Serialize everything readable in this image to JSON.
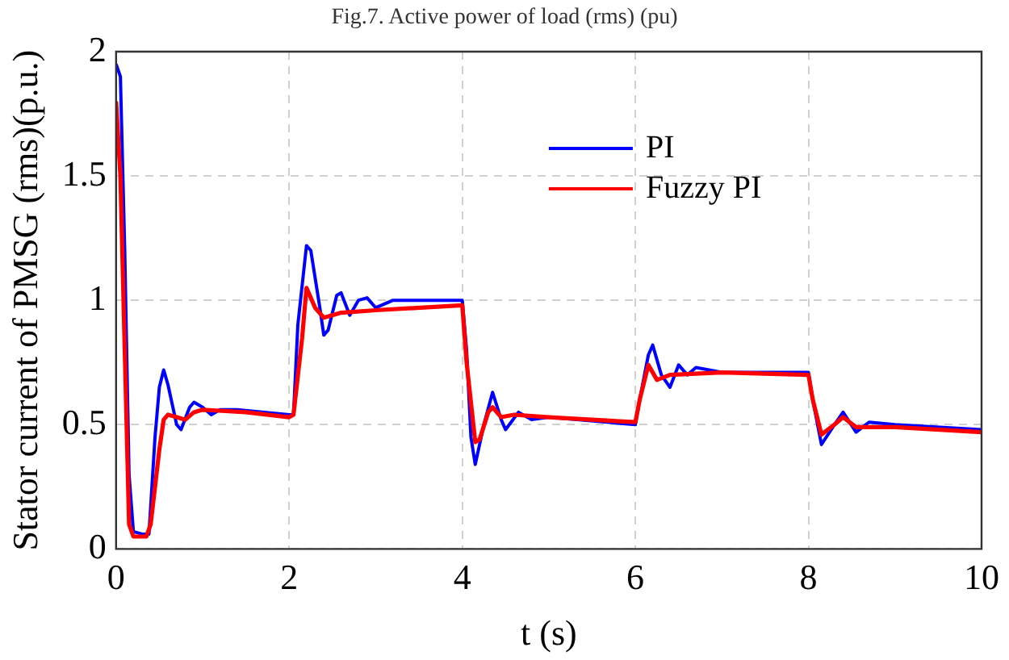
{
  "chart_data": {
    "type": "line",
    "annotations": [
      "Fig.7. Active power of load (rms) (pu)"
    ],
    "xlabel": "t (s)",
    "ylabel": "Stator current of PMSG (rms)(p.u.)",
    "xlim": [
      0,
      10
    ],
    "xticks": [
      0,
      2,
      4,
      6,
      8,
      10
    ],
    "ylim": [
      0,
      2
    ],
    "yticks": [
      0,
      0.5,
      1,
      1.5,
      2
    ],
    "grid": true,
    "legend": "top right",
    "marker": "none",
    "line_style": "solid",
    "series": [
      {
        "name": "PI",
        "color": "#0000ff",
        "x": [
          0,
          0.05,
          0.1,
          0.15,
          0.2,
          0.3,
          0.38,
          0.45,
          0.5,
          0.55,
          0.6,
          0.7,
          0.75,
          0.85,
          0.9,
          1.0,
          1.1,
          1.2,
          1.4,
          2.0,
          2.05,
          2.1,
          2.2,
          2.25,
          2.35,
          2.4,
          2.45,
          2.55,
          2.6,
          2.7,
          2.8,
          2.9,
          3.0,
          3.2,
          3.5,
          4.0,
          4.05,
          4.1,
          4.15,
          4.25,
          4.35,
          4.45,
          4.5,
          4.65,
          4.8,
          5.0,
          6.0,
          6.05,
          6.15,
          6.2,
          6.3,
          6.4,
          6.5,
          6.6,
          6.7,
          7.0,
          8.0,
          8.05,
          8.15,
          8.3,
          8.4,
          8.55,
          8.7,
          9.0,
          10
        ],
        "values": [
          1.95,
          1.9,
          1.2,
          0.3,
          0.07,
          0.06,
          0.06,
          0.45,
          0.65,
          0.72,
          0.66,
          0.5,
          0.48,
          0.57,
          0.59,
          0.57,
          0.54,
          0.56,
          0.56,
          0.54,
          0.54,
          0.9,
          1.22,
          1.2,
          0.98,
          0.86,
          0.88,
          1.02,
          1.03,
          0.94,
          1.0,
          1.01,
          0.97,
          1.0,
          1.0,
          1.0,
          0.8,
          0.45,
          0.34,
          0.5,
          0.63,
          0.52,
          0.48,
          0.55,
          0.52,
          0.53,
          0.5,
          0.6,
          0.78,
          0.82,
          0.7,
          0.65,
          0.74,
          0.7,
          0.73,
          0.71,
          0.71,
          0.6,
          0.42,
          0.5,
          0.55,
          0.47,
          0.51,
          0.5,
          0.48
        ]
      },
      {
        "name": "Fuzzy PI",
        "color": "#ff0000",
        "x": [
          0,
          0.05,
          0.1,
          0.15,
          0.2,
          0.35,
          0.4,
          0.5,
          0.55,
          0.6,
          0.7,
          0.8,
          0.9,
          1.0,
          1.5,
          2.0,
          2.05,
          2.15,
          2.2,
          2.3,
          2.4,
          2.6,
          3.0,
          4.0,
          4.05,
          4.15,
          4.2,
          4.3,
          4.35,
          4.45,
          4.6,
          5.0,
          6.0,
          6.05,
          6.15,
          6.25,
          6.4,
          7.0,
          8.0,
          8.05,
          8.15,
          8.3,
          8.4,
          8.55,
          9.0,
          10
        ],
        "values": [
          1.8,
          1.5,
          0.8,
          0.1,
          0.05,
          0.05,
          0.1,
          0.4,
          0.52,
          0.54,
          0.53,
          0.52,
          0.55,
          0.56,
          0.55,
          0.53,
          0.54,
          0.85,
          1.05,
          0.97,
          0.93,
          0.95,
          0.96,
          0.98,
          0.75,
          0.43,
          0.44,
          0.55,
          0.57,
          0.53,
          0.54,
          0.53,
          0.51,
          0.6,
          0.74,
          0.68,
          0.7,
          0.71,
          0.7,
          0.6,
          0.46,
          0.5,
          0.53,
          0.49,
          0.49,
          0.47
        ]
      }
    ]
  }
}
